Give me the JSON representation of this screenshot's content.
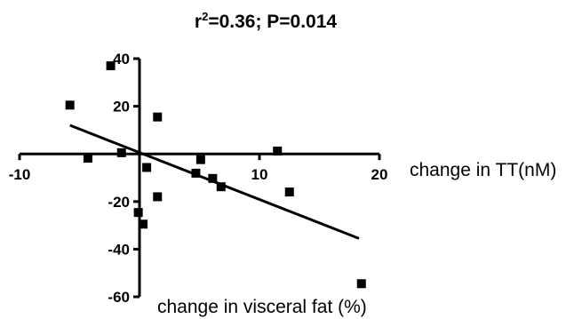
{
  "chart_data": {
    "type": "scatter",
    "title_main": "r",
    "title_sup": "2",
    "title_rest": "=0.36; P=0.014",
    "xlabel": "change in TT(nM)",
    "ylabel": "change in visceral fat (%)",
    "xlim": [
      -10,
      20
    ],
    "ylim": [
      -60,
      40
    ],
    "x_ticks": [
      -10,
      10,
      20
    ],
    "y_ticks": [
      40,
      20,
      -20,
      -40,
      -60
    ],
    "grid": false,
    "points": [
      {
        "x": -2.4,
        "y": 37
      },
      {
        "x": -5.8,
        "y": 20.5
      },
      {
        "x": -4.3,
        "y": -1.8
      },
      {
        "x": -1.5,
        "y": 0.5
      },
      {
        "x": 1.5,
        "y": 15.5
      },
      {
        "x": 0.6,
        "y": -5.7
      },
      {
        "x": 5.1,
        "y": -2.4
      },
      {
        "x": 11.5,
        "y": 1.2
      },
      {
        "x": 4.7,
        "y": -8.1
      },
      {
        "x": 6.1,
        "y": -10.3
      },
      {
        "x": 6.8,
        "y": -13.8
      },
      {
        "x": 1.5,
        "y": -18
      },
      {
        "x": 12.5,
        "y": -16
      },
      {
        "x": -0.1,
        "y": -24.6
      },
      {
        "x": 0.3,
        "y": -29.5
      },
      {
        "x": 18.5,
        "y": -54.5
      }
    ],
    "regression": {
      "x1": -5.8,
      "y1": 12,
      "x2": 18.3,
      "y2": -35.5
    }
  }
}
